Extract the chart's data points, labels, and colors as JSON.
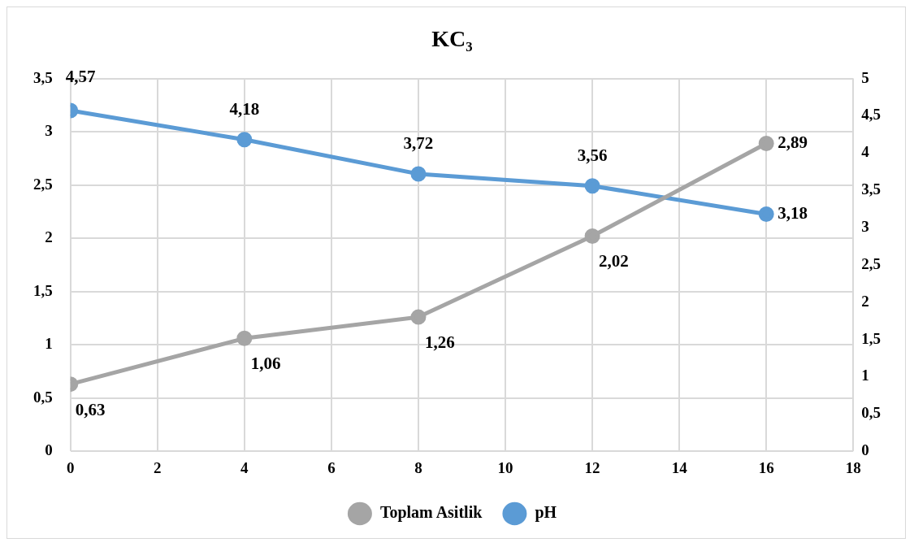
{
  "chart_data": {
    "type": "line",
    "title": "KC₃",
    "x": [
      0,
      4,
      8,
      12,
      16
    ],
    "series": [
      {
        "name": "Toplam Asitlik",
        "color": "#a5a5a5",
        "values": [
          0.63,
          1.06,
          1.26,
          2.02,
          2.89
        ],
        "value_labels": [
          "0,63",
          "1,06",
          "1,26",
          "2,02",
          "2,89"
        ]
      },
      {
        "name": "pH",
        "color": "#5b9bd5",
        "axis": "y2",
        "values": [
          4.57,
          4.18,
          3.72,
          3.56,
          3.18
        ],
        "value_labels": [
          "4,57",
          "4,18",
          "3,72",
          "3,56",
          "3,18"
        ]
      }
    ],
    "xlim": [
      0,
      18
    ],
    "xticks": [
      0,
      2,
      4,
      6,
      8,
      10,
      12,
      14,
      16,
      18
    ],
    "ylim": [
      0,
      3.5
    ],
    "yticks": [
      0,
      {
        "value": 0.5,
        "label": "0,5"
      },
      1,
      {
        "value": 1.5,
        "label": "1,5"
      },
      2,
      {
        "value": 2.5,
        "label": "2,5"
      },
      3,
      {
        "value": 3.5,
        "label": "3,5"
      }
    ],
    "y2lim": [
      0,
      5
    ],
    "y2ticks": [
      0,
      {
        "value": 0.5,
        "label": "0,5"
      },
      1,
      {
        "value": 1.5,
        "label": "1,5"
      },
      2,
      {
        "value": 2.5,
        "label": "2,5"
      },
      3,
      {
        "value": 3.5,
        "label": "3,5"
      },
      4,
      {
        "value": 4.5,
        "label": "4,5"
      },
      5
    ],
    "grid": true,
    "legend": "bottom",
    "marker": "circle",
    "line_style": "solid"
  }
}
